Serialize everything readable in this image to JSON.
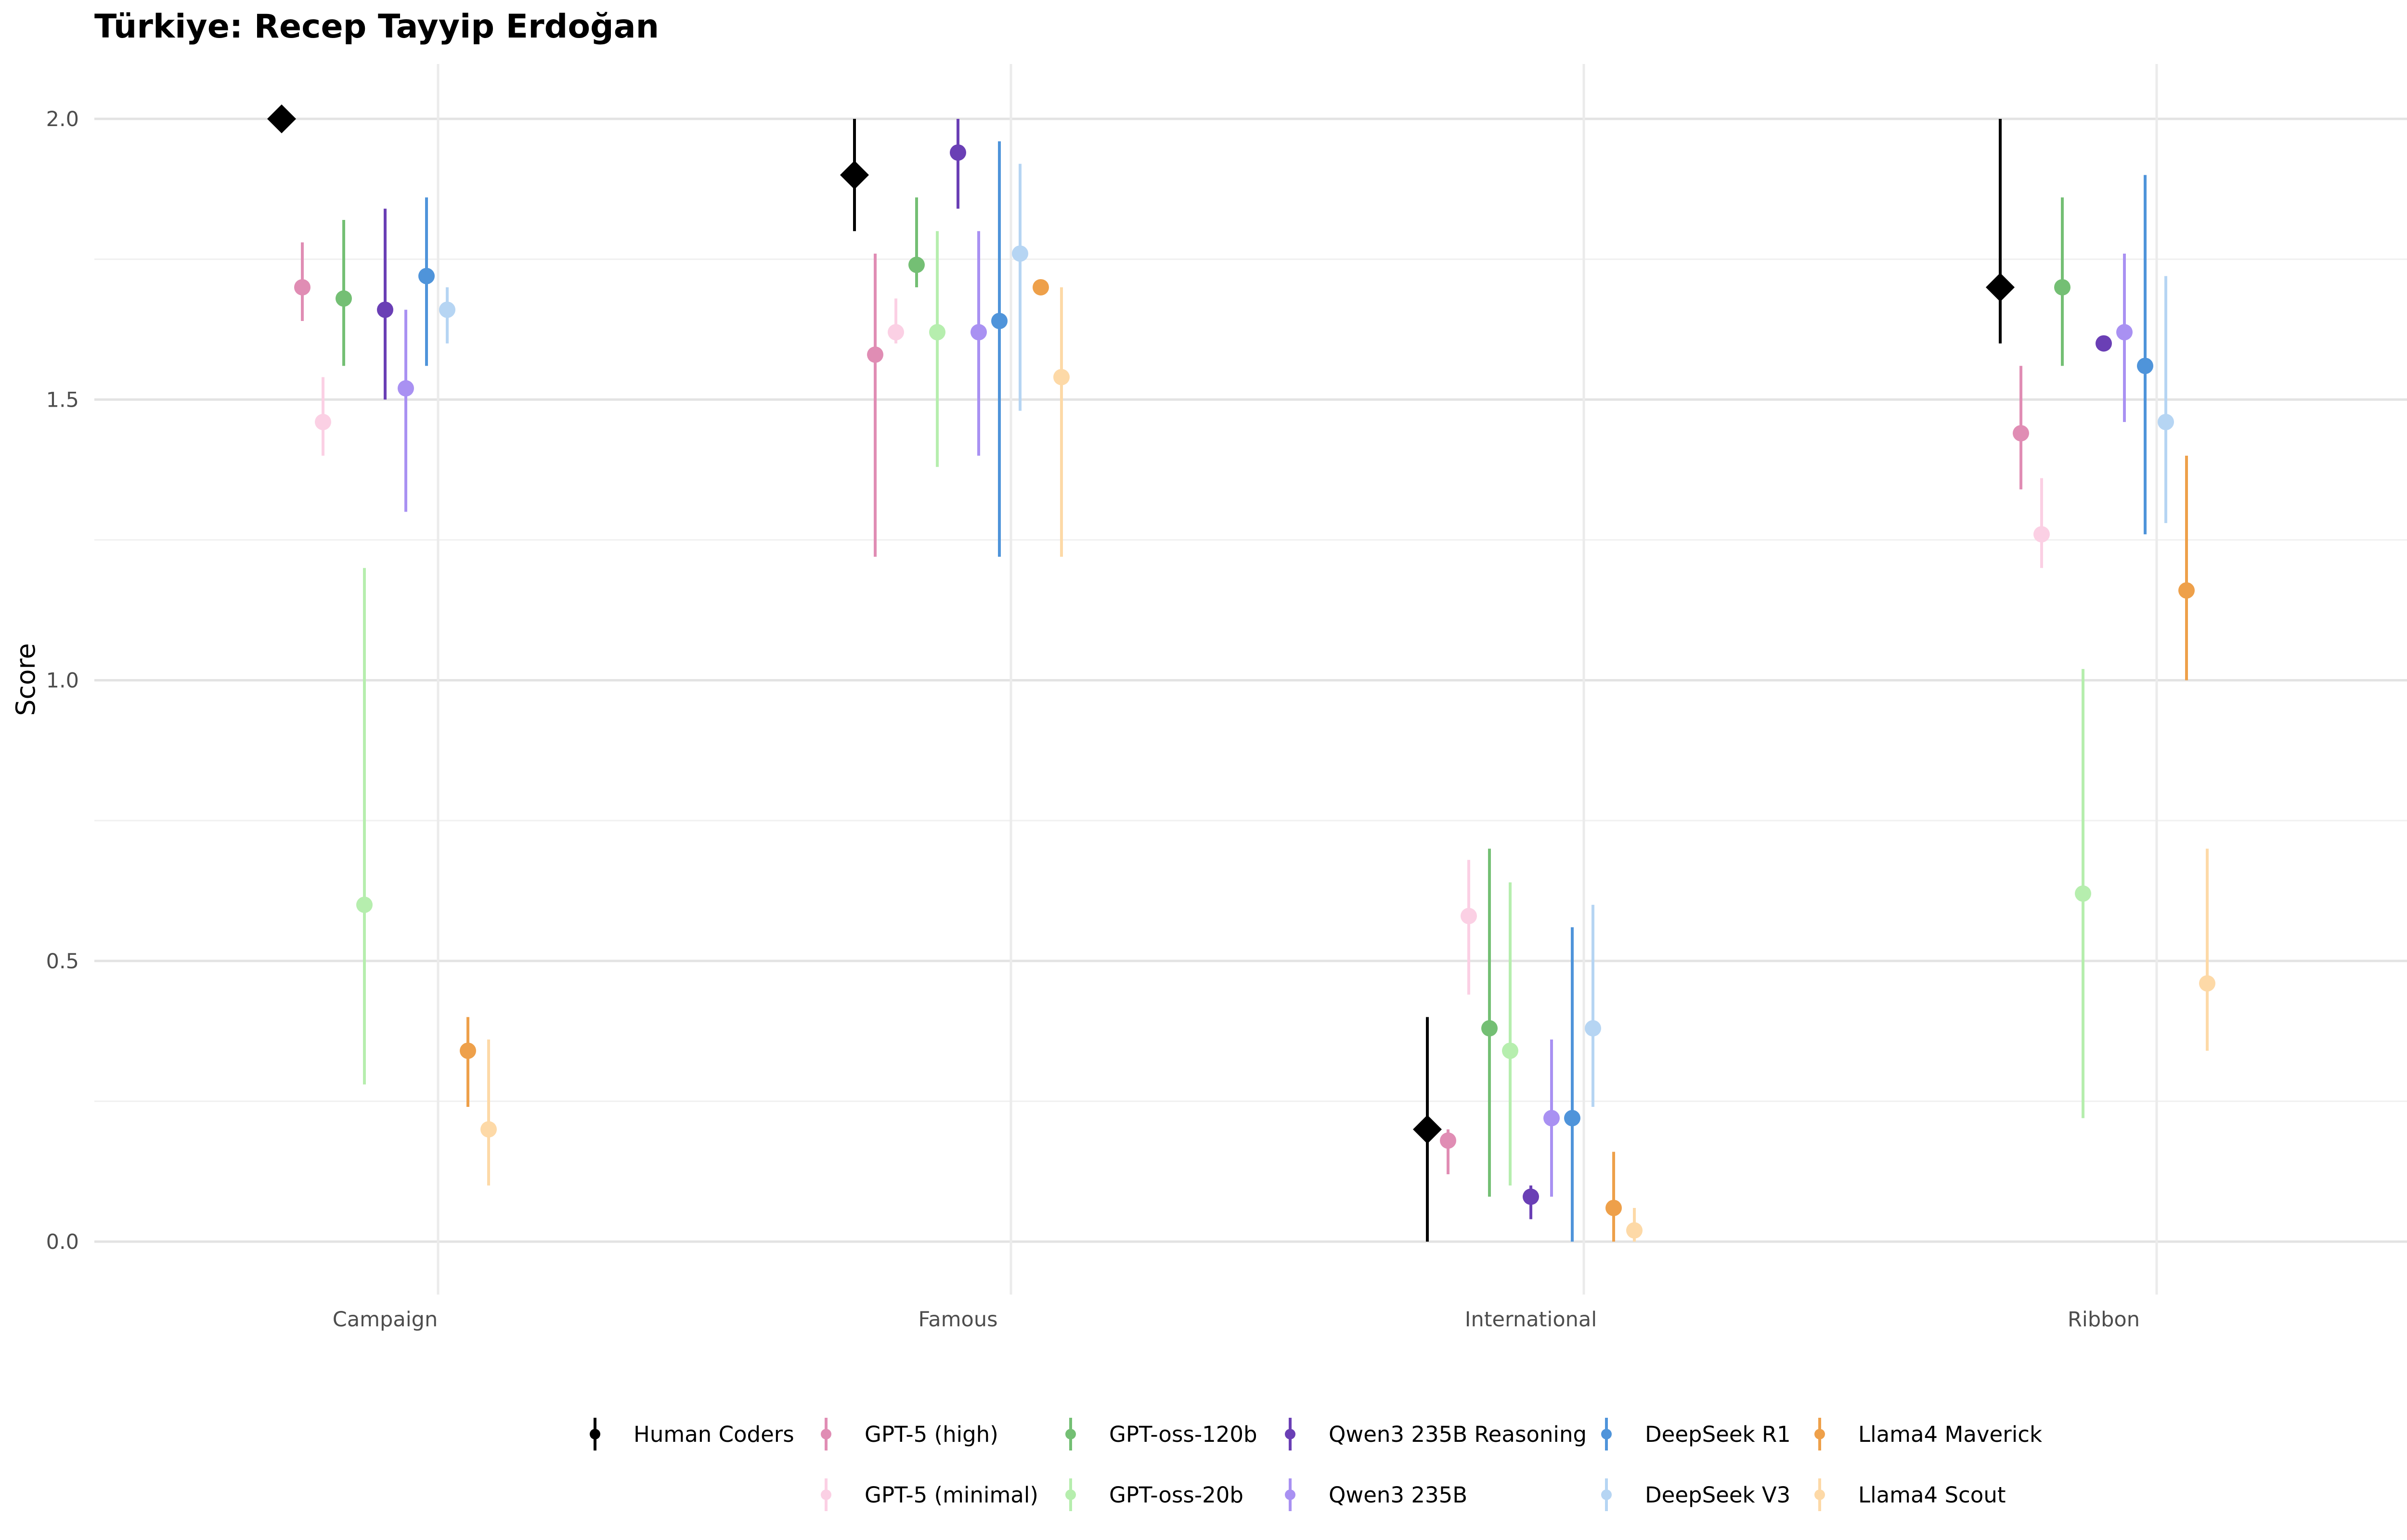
{
  "chart_data": {
    "type": "scatter",
    "title": "Türkiye: Recep Tayyip Erdoğan",
    "subtitle": "",
    "xlabel": "",
    "ylabel": "Score",
    "categories": [
      "Campaign",
      "Famous",
      "International",
      "Ribbon"
    ],
    "ylim": [
      -0.1,
      2.1
    ],
    "yticks": [
      0.0,
      0.5,
      1.0,
      1.5,
      2.0
    ],
    "ytick_labels": [
      "0.0",
      "0.5",
      "1.0",
      "1.5",
      "2.0"
    ],
    "grid": true,
    "legend_position": "bottom",
    "series": [
      {
        "name": "Human Coders",
        "color": "#000000",
        "marker": "diamond",
        "values": [
          2.0,
          1.9,
          0.2,
          1.7
        ],
        "lower": [
          2.0,
          1.8,
          0.0,
          1.6
        ],
        "upper": [
          2.0,
          2.0,
          0.4,
          2.0
        ]
      },
      {
        "name": "GPT-5 (high)",
        "color": "#e08db4",
        "marker": "circle",
        "values": [
          1.7,
          1.58,
          0.18,
          1.44
        ],
        "lower": [
          1.64,
          1.22,
          0.12,
          1.34
        ],
        "upper": [
          1.78,
          1.76,
          0.2,
          1.56
        ]
      },
      {
        "name": "GPT-5 (minimal)",
        "color": "#fbd0e4",
        "marker": "circle",
        "values": [
          1.46,
          1.62,
          0.58,
          1.26
        ],
        "lower": [
          1.4,
          1.6,
          0.44,
          1.2
        ],
        "upper": [
          1.54,
          1.68,
          0.68,
          1.36
        ]
      },
      {
        "name": "GPT-oss-120b",
        "color": "#74bf74",
        "marker": "circle",
        "values": [
          1.68,
          1.74,
          0.38,
          1.7
        ],
        "lower": [
          1.56,
          1.7,
          0.08,
          1.56
        ],
        "upper": [
          1.82,
          1.86,
          0.7,
          1.86
        ]
      },
      {
        "name": "GPT-oss-20b",
        "color": "#b6eeae",
        "marker": "circle",
        "values": [
          0.6,
          1.62,
          0.34,
          0.62
        ],
        "lower": [
          0.28,
          1.38,
          0.1,
          0.22
        ],
        "upper": [
          1.2,
          1.8,
          0.64,
          1.02
        ]
      },
      {
        "name": "Qwen3 235B Reasoning",
        "color": "#6a3fb5",
        "marker": "circle",
        "values": [
          1.66,
          1.94,
          0.08,
          1.6
        ],
        "lower": [
          1.5,
          1.84,
          0.04,
          1.6
        ],
        "upper": [
          1.84,
          2.0,
          0.1,
          1.6
        ]
      },
      {
        "name": "Qwen3 235B",
        "color": "#a991f2",
        "marker": "circle",
        "values": [
          1.52,
          1.62,
          0.22,
          1.62
        ],
        "lower": [
          1.3,
          1.4,
          0.08,
          1.46
        ],
        "upper": [
          1.66,
          1.8,
          0.36,
          1.76
        ]
      },
      {
        "name": "DeepSeek R1",
        "color": "#4f94da",
        "marker": "circle",
        "values": [
          1.72,
          1.64,
          0.22,
          1.56
        ],
        "lower": [
          1.56,
          1.22,
          0.0,
          1.26
        ],
        "upper": [
          1.86,
          1.96,
          0.56,
          1.9
        ]
      },
      {
        "name": "DeepSeek V3",
        "color": "#b6d5f3",
        "marker": "circle",
        "values": [
          1.66,
          1.76,
          0.38,
          1.46
        ],
        "lower": [
          1.6,
          1.48,
          0.24,
          1.28
        ],
        "upper": [
          1.7,
          1.92,
          0.6,
          1.72
        ]
      },
      {
        "name": "Llama4 Maverick",
        "color": "#eea04a",
        "marker": "circle",
        "values": [
          0.34,
          1.7,
          0.06,
          1.16
        ],
        "lower": [
          0.24,
          1.7,
          0.0,
          1.0
        ],
        "upper": [
          0.4,
          1.7,
          0.16,
          1.4
        ]
      },
      {
        "name": "Llama4 Scout",
        "color": "#fdd9a7",
        "marker": "circle",
        "values": [
          0.2,
          1.54,
          0.02,
          0.46
        ],
        "lower": [
          0.1,
          1.22,
          0.0,
          0.34
        ],
        "upper": [
          0.36,
          1.7,
          0.06,
          0.7
        ]
      }
    ],
    "legend_rows": [
      [
        "Human Coders",
        "GPT-5 (high)",
        "GPT-oss-120b",
        "Qwen3 235B Reasoning",
        "DeepSeek R1",
        "Llama4 Maverick"
      ],
      [
        "GPT-5 (minimal)",
        "GPT-oss-20b",
        "Qwen3 235B",
        "DeepSeek V3",
        "Llama4 Scout"
      ]
    ]
  }
}
